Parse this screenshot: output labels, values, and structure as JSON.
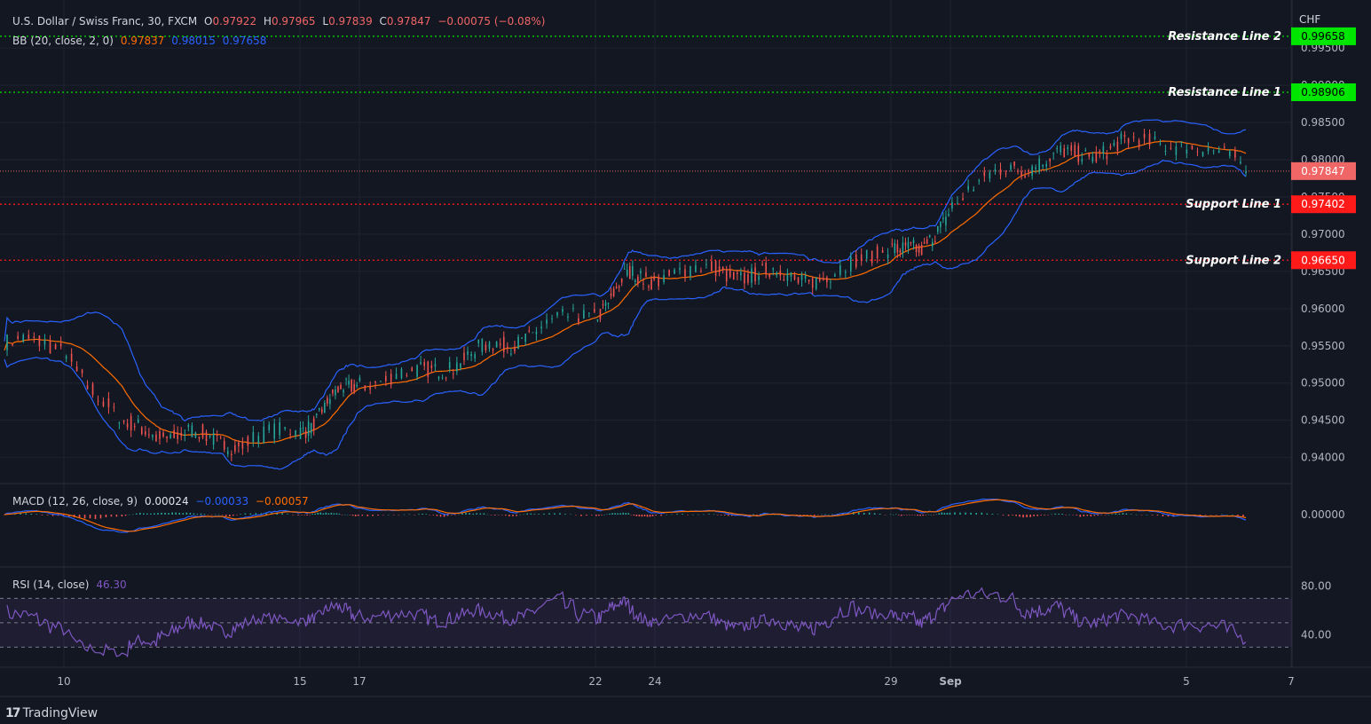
{
  "header": {
    "symbol": "U.S. Dollar / Swiss Franc, 30, FXCM",
    "o_label": "O",
    "o_value": "0.97922",
    "h_label": "H",
    "h_value": "0.97965",
    "l_label": "L",
    "l_value": "0.97839",
    "c_label": "C",
    "c_value": "0.97847",
    "change": "−0.00075 (−0.08%)"
  },
  "bb_legend": {
    "label": "BB (20, close, 2, 0)",
    "basis": "0.97837",
    "upper": "0.98015",
    "lower": "0.97658"
  },
  "macd_legend": {
    "label": "MACD (12, 26, close, 9)",
    "hist": "0.00024",
    "macd": "−0.00033",
    "signal": "−0.00057"
  },
  "rsi_legend": {
    "label": "RSI (14, close)",
    "value": "46.30"
  },
  "currency": "CHF",
  "footer": {
    "brand": "TradingView"
  },
  "colors": {
    "background": "#131722",
    "bb_band": "#2962ff",
    "bb_basis": "#ff6d00",
    "up": "#26a69a",
    "down": "#ef5350",
    "resistance": "#00e600",
    "support": "#ff1a1a",
    "rsi": "#7e57c2",
    "price_label": "#f06666"
  },
  "chart_data": [
    {
      "type": "candlestick",
      "title": "U.S. Dollar / Swiss Franc, 30, FXCM",
      "ylabel": "CHF",
      "ylim": [
        0.9365,
        1.0005
      ],
      "y_ticks": [
        0.94,
        0.945,
        0.95,
        0.955,
        0.96,
        0.965,
        0.97,
        0.975,
        0.98,
        0.985,
        0.99,
        0.995
      ],
      "x_ticks": [
        "10",
        "15",
        "17",
        "22",
        "24",
        "29",
        "Sep",
        "5",
        "7"
      ],
      "approx_close_path": [
        {
          "x": "Aug 9",
          "y": 0.9555
        },
        {
          "x": "Aug 10",
          "y": 0.9545
        },
        {
          "x": "Aug 11",
          "y": 0.944
        },
        {
          "x": "Aug 14",
          "y": 0.942
        },
        {
          "x": "Aug 15",
          "y": 0.9435
        },
        {
          "x": "Aug 16",
          "y": 0.9475
        },
        {
          "x": "Aug 17",
          "y": 0.9505
        },
        {
          "x": "Aug 18",
          "y": 0.951
        },
        {
          "x": "Aug 21",
          "y": 0.957
        },
        {
          "x": "Aug 22",
          "y": 0.9595
        },
        {
          "x": "Aug 23",
          "y": 0.964
        },
        {
          "x": "Aug 24",
          "y": 0.9645
        },
        {
          "x": "Aug 25",
          "y": 0.965
        },
        {
          "x": "Aug 28",
          "y": 0.964
        },
        {
          "x": "Aug 29",
          "y": 0.969
        },
        {
          "x": "Aug 30",
          "y": 0.967
        },
        {
          "x": "Aug 31",
          "y": 0.974
        },
        {
          "x": "Sep 1",
          "y": 0.979
        },
        {
          "x": "Sep 4",
          "y": 0.982
        },
        {
          "x": "Sep 5",
          "y": 0.9825
        },
        {
          "x": "Sep 6",
          "y": 0.9785
        }
      ],
      "horizontal_lines": [
        {
          "name": "Resistance Line 2",
          "value": "0.99658",
          "kind": "resistance"
        },
        {
          "name": "Resistance Line 1",
          "value": "0.98906",
          "kind": "resistance"
        },
        {
          "name": "Support Line 1",
          "value": "0.97402",
          "kind": "support"
        },
        {
          "name": "Support Line 2",
          "value": "0.96650",
          "kind": "support"
        }
      ],
      "last_price": "0.97847",
      "grid": true
    },
    {
      "type": "line",
      "title": "MACD (12, 26, close, 9)",
      "y_ticks": [
        "0.00000"
      ],
      "series": [
        {
          "name": "MACD",
          "last": "−0.00033"
        },
        {
          "name": "Signal",
          "last": "−0.00057"
        },
        {
          "name": "Histogram",
          "last": "0.00024"
        }
      ]
    },
    {
      "type": "line",
      "title": "RSI (14, close)",
      "ylim": [
        15,
        95
      ],
      "y_ticks": [
        "80.00",
        "40.00"
      ],
      "bands": [
        70,
        50,
        30
      ],
      "last": "46.30"
    }
  ]
}
